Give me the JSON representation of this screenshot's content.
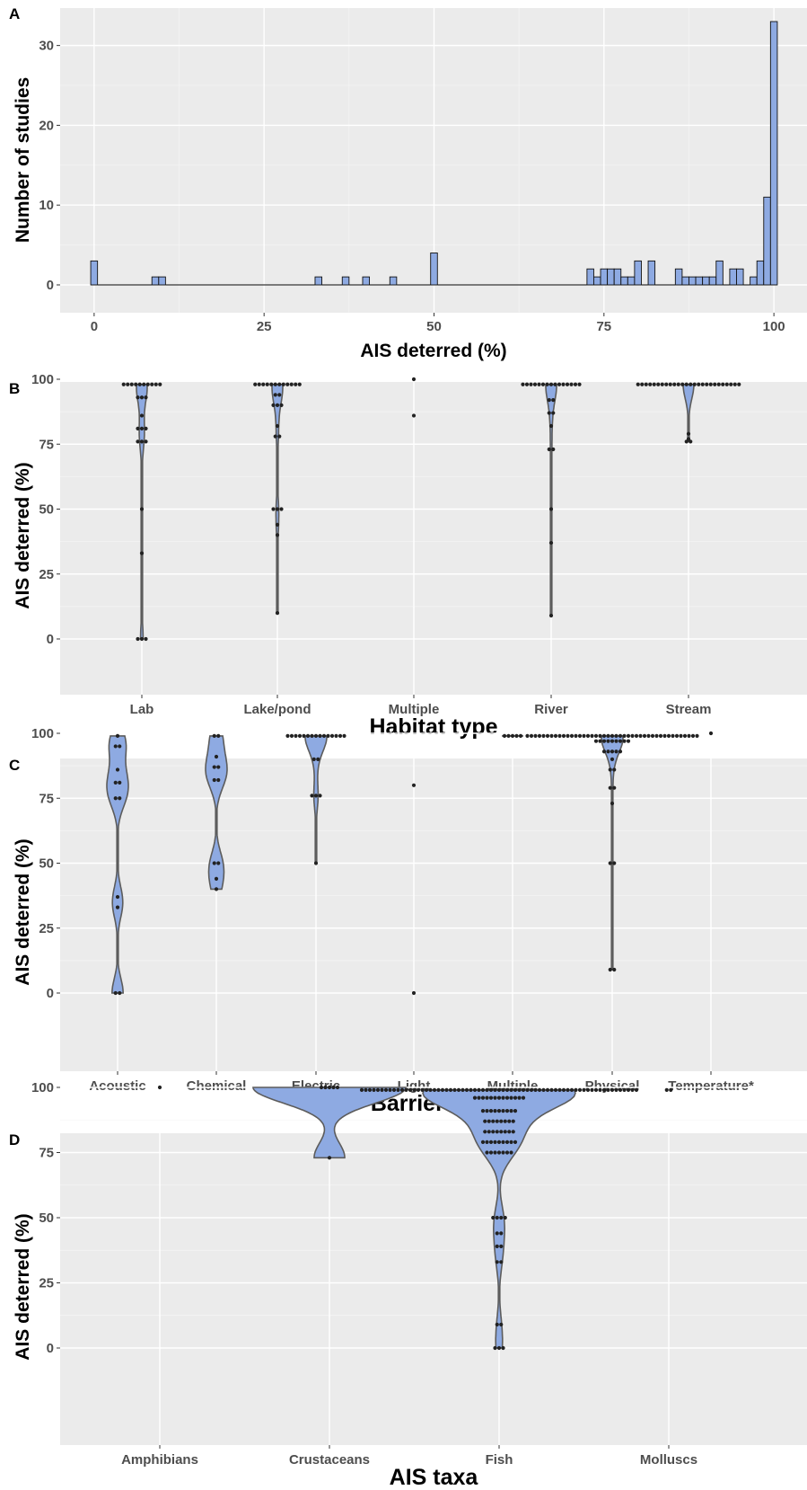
{
  "chart_data": [
    {
      "panel": "A",
      "type": "bar",
      "subtype": "histogram",
      "xlabel": "AIS deterred (%)",
      "ylabel": "Number of studies",
      "xlim": [
        -5,
        105
      ],
      "ylim": [
        0,
        33
      ],
      "x_ticks": [
        "0",
        "25",
        "50",
        "75",
        "100"
      ],
      "y_ticks": [
        "0",
        "10",
        "20",
        "30"
      ],
      "bin_width": 1,
      "bins": [
        {
          "x": 0,
          "count": 3
        },
        {
          "x": 9,
          "count": 1
        },
        {
          "x": 10,
          "count": 1
        },
        {
          "x": 33,
          "count": 1
        },
        {
          "x": 37,
          "count": 1
        },
        {
          "x": 40,
          "count": 1
        },
        {
          "x": 44,
          "count": 1
        },
        {
          "x": 50,
          "count": 4
        },
        {
          "x": 73,
          "count": 2
        },
        {
          "x": 74,
          "count": 1
        },
        {
          "x": 75,
          "count": 2
        },
        {
          "x": 76,
          "count": 2
        },
        {
          "x": 77,
          "count": 2
        },
        {
          "x": 78,
          "count": 1
        },
        {
          "x": 79,
          "count": 1
        },
        {
          "x": 80,
          "count": 3
        },
        {
          "x": 82,
          "count": 3
        },
        {
          "x": 86,
          "count": 2
        },
        {
          "x": 87,
          "count": 1
        },
        {
          "x": 88,
          "count": 1
        },
        {
          "x": 89,
          "count": 1
        },
        {
          "x": 90,
          "count": 1
        },
        {
          "x": 91,
          "count": 1
        },
        {
          "x": 92,
          "count": 3
        },
        {
          "x": 94,
          "count": 2
        },
        {
          "x": 95,
          "count": 2
        },
        {
          "x": 97,
          "count": 1
        },
        {
          "x": 98,
          "count": 3
        },
        {
          "x": 99,
          "count": 11
        },
        {
          "x": 100,
          "count": 33
        }
      ],
      "fill": "#8eaae2",
      "grid": true
    },
    {
      "panel": "B",
      "type": "violin",
      "xlabel": "Habitat type",
      "ylabel": "AIS deterred (%)",
      "ylim": [
        -7,
        107
      ],
      "y_ticks": [
        "0",
        "25",
        "50",
        "75",
        "100"
      ],
      "categories": [
        "Lab",
        "Lake/pond",
        "Multiple",
        "River",
        "Stream"
      ],
      "series": [
        {
          "category": "Lab",
          "points": [
            98,
            98,
            98,
            98,
            98,
            98,
            98,
            98,
            98,
            98,
            93,
            93,
            93,
            86,
            81,
            81,
            81,
            76,
            76,
            76,
            50,
            33,
            0,
            0,
            0
          ]
        },
        {
          "category": "Lake/pond",
          "points": [
            98,
            98,
            98,
            98,
            98,
            98,
            98,
            98,
            98,
            98,
            98,
            98,
            94,
            94,
            90,
            90,
            90,
            82,
            78,
            78,
            50,
            50,
            50,
            44,
            40,
            10
          ]
        },
        {
          "category": "Multiple",
          "points": [
            100,
            86
          ]
        },
        {
          "category": "River",
          "points": [
            98,
            98,
            98,
            98,
            98,
            98,
            98,
            98,
            98,
            98,
            98,
            98,
            98,
            98,
            98,
            92,
            92,
            87,
            87,
            82,
            73,
            73,
            50,
            37,
            9
          ]
        },
        {
          "category": "Stream",
          "points": [
            98,
            98,
            98,
            98,
            98,
            98,
            98,
            98,
            98,
            98,
            98,
            98,
            98,
            98,
            98,
            98,
            98,
            98,
            98,
            98,
            98,
            98,
            98,
            98,
            98,
            98,
            79,
            77,
            76,
            76
          ]
        }
      ],
      "fill": "#8eaae2",
      "grid": true
    },
    {
      "panel": "C",
      "type": "violin",
      "xlabel": "Barrier type",
      "ylabel": "AIS deterred (%)",
      "ylim": [
        -7,
        107
      ],
      "y_ticks": [
        "0",
        "25",
        "50",
        "75",
        "100"
      ],
      "categories": [
        "Acoustic",
        "Chemical",
        "Electric",
        "Light",
        "Multiple",
        "Physical",
        "Temperature*"
      ],
      "series": [
        {
          "category": "Acoustic",
          "points": [
            99,
            95,
            95,
            86,
            81,
            81,
            75,
            75,
            37,
            33,
            0,
            0
          ]
        },
        {
          "category": "Chemical",
          "points": [
            99,
            99,
            91,
            87,
            87,
            82,
            82,
            50,
            50,
            44,
            40
          ]
        },
        {
          "category": "Electric",
          "points": [
            99,
            99,
            99,
            99,
            99,
            99,
            99,
            99,
            99,
            99,
            99,
            99,
            99,
            99,
            99,
            90,
            90,
            76,
            76,
            76,
            50
          ]
        },
        {
          "category": "Light",
          "points": [
            80,
            0
          ]
        },
        {
          "category": "Multiple",
          "points": [
            99,
            99,
            99,
            99,
            99
          ]
        },
        {
          "category": "Physical",
          "points": [
            99,
            99,
            99,
            99,
            99,
            99,
            99,
            99,
            99,
            99,
            99,
            99,
            99,
            99,
            99,
            99,
            99,
            99,
            99,
            99,
            99,
            99,
            99,
            99,
            99,
            99,
            99,
            99,
            99,
            99,
            99,
            99,
            99,
            99,
            99,
            99,
            99,
            99,
            99,
            99,
            99,
            99,
            99,
            97,
            97,
            97,
            97,
            97,
            97,
            97,
            97,
            97,
            93,
            93,
            93,
            93,
            93,
            90,
            86,
            86,
            79,
            79,
            73,
            50,
            50,
            9,
            9
          ]
        },
        {
          "category": "Temperature*",
          "points": [
            100
          ]
        }
      ],
      "fill": "#8eaae2",
      "grid": true
    },
    {
      "panel": "D",
      "type": "violin",
      "xlabel": "AIS taxa",
      "ylabel": "AIS deterred (%)",
      "ylim": [
        -7,
        107
      ],
      "y_ticks": [
        "0",
        "25",
        "50",
        "75",
        "100"
      ],
      "categories": [
        "Amphibians",
        "Crustaceans",
        "Fish",
        "Molluscs"
      ],
      "series": [
        {
          "category": "Amphibians",
          "points": [
            100
          ]
        },
        {
          "category": "Crustaceans",
          "points": [
            100,
            100,
            100,
            100,
            100,
            73
          ]
        },
        {
          "category": "Fish",
          "points": [
            99,
            99,
            99,
            99,
            99,
            99,
            99,
            99,
            99,
            99,
            99,
            99,
            99,
            99,
            99,
            99,
            99,
            99,
            99,
            99,
            99,
            99,
            99,
            99,
            99,
            99,
            99,
            99,
            99,
            99,
            99,
            99,
            99,
            99,
            99,
            99,
            99,
            99,
            99,
            99,
            99,
            99,
            99,
            99,
            99,
            99,
            99,
            99,
            99,
            99,
            99,
            99,
            99,
            99,
            99,
            99,
            99,
            99,
            99,
            99,
            99,
            99,
            99,
            99,
            99,
            99,
            99,
            99,
            99,
            96,
            96,
            96,
            96,
            96,
            96,
            96,
            96,
            96,
            96,
            96,
            96,
            96,
            91,
            91,
            91,
            91,
            91,
            91,
            91,
            91,
            91,
            87,
            87,
            87,
            87,
            87,
            87,
            87,
            87,
            83,
            83,
            83,
            83,
            83,
            83,
            83,
            83,
            79,
            79,
            79,
            79,
            79,
            79,
            79,
            79,
            79,
            75,
            75,
            75,
            75,
            75,
            75,
            75,
            50,
            50,
            50,
            50,
            44,
            44,
            39,
            39,
            33,
            33,
            9,
            9,
            0,
            0,
            0
          ]
        },
        {
          "category": "Molluscs",
          "points": [
            99,
            99
          ]
        }
      ],
      "fill": "#8eaae2",
      "grid": true
    }
  ],
  "panel_letters": [
    "A",
    "B",
    "C",
    "D"
  ]
}
